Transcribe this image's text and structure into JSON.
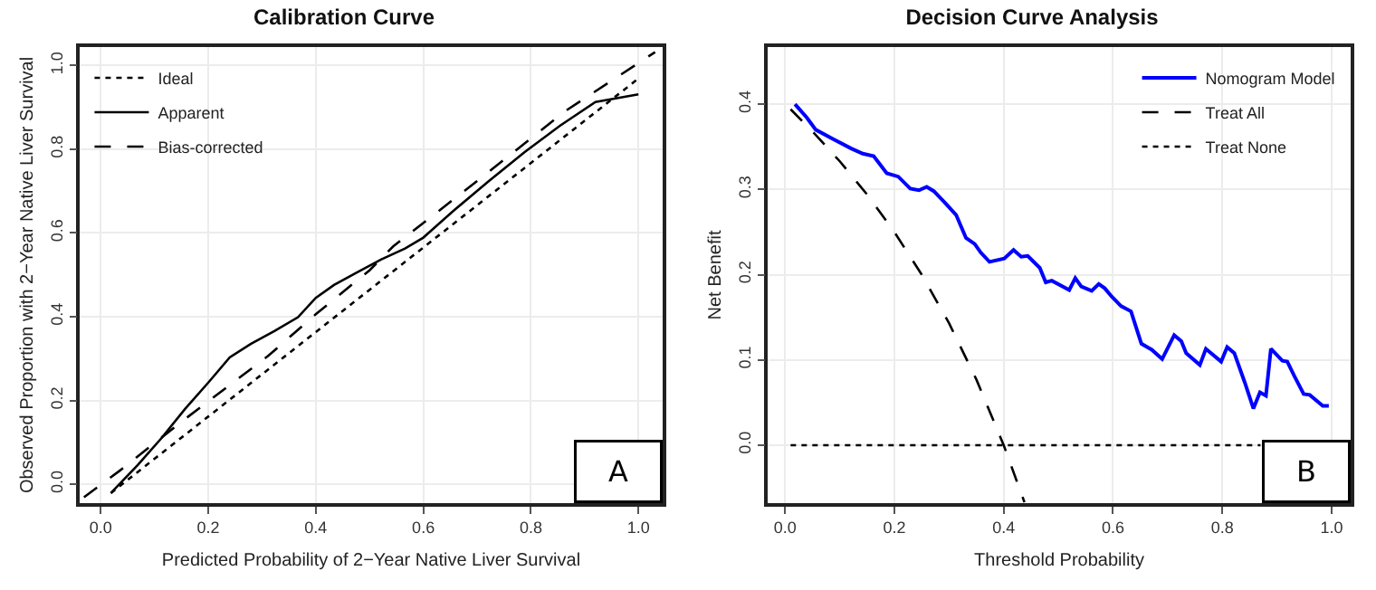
{
  "chart_data": [
    {
      "type": "line",
      "title": "Calibration Curve",
      "xlabel": "Predicted Probability of 2−Year Native Liver Survival",
      "ylabel": "Observed Proportion with 2−Year Native Liver Survival",
      "xlim": [
        -0.039,
        1.045
      ],
      "ylim": [
        -0.045,
        1.044
      ],
      "xticks": [
        {
          "value": 0,
          "label": "0.0"
        },
        {
          "value": 0.2,
          "label": "0.2"
        },
        {
          "value": 0.4,
          "label": "0.4"
        },
        {
          "value": 0.6,
          "label": "0.6"
        },
        {
          "value": 0.8,
          "label": "0.8"
        },
        {
          "value": 1,
          "label": "1.0"
        }
      ],
      "yticks": [
        {
          "value": 0,
          "label": "0.0"
        },
        {
          "value": 0.2,
          "label": "0.2"
        },
        {
          "value": 0.4,
          "label": "0.4"
        },
        {
          "value": 0.6,
          "label": "0.6"
        },
        {
          "value": 0.8,
          "label": "0.8"
        },
        {
          "value": 1,
          "label": "1.0"
        }
      ],
      "grid": true,
      "legend": "top left",
      "marker": "none",
      "annotations": [
        "A"
      ],
      "series": [
        {
          "name": "Ideal",
          "color": "#000000",
          "line_style": "dotted",
          "x": [
            0.019,
            1.0
          ],
          "values": [
            -0.021,
            0.969
          ]
        },
        {
          "name": "Apparent",
          "color": "#000000",
          "line_style": "solid",
          "x": [
            0.019,
            0.069,
            0.113,
            0.157,
            0.201,
            0.24,
            0.279,
            0.323,
            0.367,
            0.4,
            0.434,
            0.478,
            0.522,
            0.566,
            0.6,
            0.655,
            0.721,
            0.788,
            0.854,
            0.92,
            1.0
          ],
          "values": [
            -0.021,
            0.046,
            0.11,
            0.18,
            0.244,
            0.303,
            0.335,
            0.366,
            0.399,
            0.445,
            0.476,
            0.507,
            0.537,
            0.563,
            0.589,
            0.652,
            0.723,
            0.793,
            0.856,
            0.913,
            0.931
          ]
        },
        {
          "name": "Bias-corrected",
          "color": "#000000",
          "line_style": "dashed",
          "x": [
            -0.031,
            0.035,
            0.146,
            0.24,
            0.312,
            0.4,
            0.5,
            0.544,
            0.699,
            0.865,
            1.031
          ],
          "values": [
            -0.031,
            0.032,
            0.145,
            0.237,
            0.307,
            0.406,
            0.511,
            0.568,
            0.723,
            0.892,
            1.032
          ]
        }
      ]
    },
    {
      "type": "line",
      "title": "Decision Curve Analysis",
      "xlabel": "Threshold Probability",
      "ylabel": "Net Benefit",
      "xlim": [
        -0.032,
        1.035
      ],
      "ylim": [
        -0.068,
        0.467
      ],
      "xticks": [
        {
          "value": 0,
          "label": "0.0"
        },
        {
          "value": 0.2,
          "label": "0.2"
        },
        {
          "value": 0.4,
          "label": "0.4"
        },
        {
          "value": 0.6,
          "label": "0.6"
        },
        {
          "value": 0.8,
          "label": "0.8"
        },
        {
          "value": 1,
          "label": "1.0"
        }
      ],
      "yticks": [
        {
          "value": 0,
          "label": "0.0"
        },
        0.1,
        0.2,
        0.3,
        0.4
      ],
      "grid": true,
      "legend": "top right",
      "marker": "none",
      "annotations": [
        "B"
      ],
      "series": [
        {
          "name": "Nomogram Model",
          "color": "#0000ff",
          "line_style": "solid",
          "x": [
            0.018,
            0.04,
            0.056,
            0.088,
            0.121,
            0.142,
            0.162,
            0.186,
            0.207,
            0.229,
            0.245,
            0.259,
            0.272,
            0.293,
            0.313,
            0.331,
            0.347,
            0.358,
            0.374,
            0.401,
            0.418,
            0.432,
            0.444,
            0.466,
            0.477,
            0.488,
            0.52,
            0.531,
            0.542,
            0.561,
            0.574,
            0.585,
            0.598,
            0.615,
            0.633,
            0.652,
            0.671,
            0.69,
            0.712,
            0.725,
            0.734,
            0.759,
            0.77,
            0.798,
            0.809,
            0.822,
            0.841,
            0.857,
            0.869,
            0.88,
            0.889,
            0.91,
            0.919,
            0.932,
            0.949,
            0.96,
            0.984,
            0.995
          ],
          "values": [
            0.4,
            0.384,
            0.37,
            0.359,
            0.348,
            0.342,
            0.339,
            0.319,
            0.315,
            0.301,
            0.299,
            0.303,
            0.298,
            0.284,
            0.27,
            0.243,
            0.236,
            0.226,
            0.215,
            0.219,
            0.229,
            0.221,
            0.222,
            0.208,
            0.191,
            0.193,
            0.182,
            0.196,
            0.186,
            0.181,
            0.189,
            0.184,
            0.174,
            0.163,
            0.157,
            0.119,
            0.112,
            0.101,
            0.129,
            0.122,
            0.108,
            0.094,
            0.113,
            0.098,
            0.115,
            0.108,
            0.074,
            0.043,
            0.062,
            0.058,
            0.113,
            0.099,
            0.098,
            0.081,
            0.06,
            0.059,
            0.046,
            0.046
          ]
        },
        {
          "name": "Treat All",
          "color": "#000000",
          "line_style": "dashed",
          "x": [
            0.01,
            0.05,
            0.1,
            0.15,
            0.2,
            0.25,
            0.3,
            0.35,
            0.4,
            0.438
          ],
          "values": [
            0.394,
            0.368,
            0.333,
            0.294,
            0.25,
            0.2,
            0.143,
            0.077,
            0.0,
            -0.067
          ]
        },
        {
          "name": "Treat None",
          "color": "#000000",
          "line_style": "dotted",
          "x": [
            0.01,
            0.87
          ],
          "values": [
            0,
            0
          ]
        }
      ]
    }
  ]
}
